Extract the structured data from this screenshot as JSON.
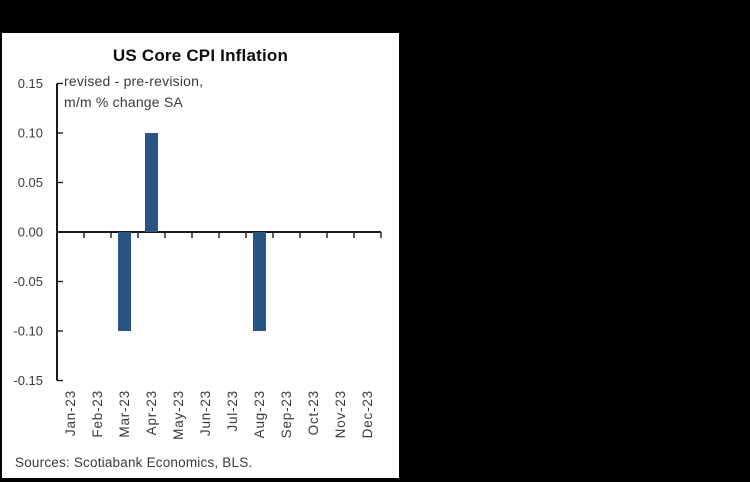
{
  "page": {
    "background_color": "#000000",
    "panel_background": "#ffffff"
  },
  "chart_data": {
    "type": "bar",
    "title": "US Core CPI Inflation",
    "annotation": [
      "revised - pre-revision,",
      "m/m % change SA"
    ],
    "categories": [
      "Jan-23",
      "Feb-23",
      "Mar-23",
      "Apr-23",
      "May-23",
      "Jun-23",
      "Jul-23",
      "Aug-23",
      "Sep-23",
      "Oct-23",
      "Nov-23",
      "Dec-23"
    ],
    "values": [
      0,
      0,
      -0.1,
      0.1,
      0,
      0,
      0,
      -0.1,
      0,
      0,
      0,
      0
    ],
    "y_ticks": [
      0.15,
      0.1,
      0.05,
      0.0,
      -0.05,
      -0.1,
      -0.15
    ],
    "y_tick_labels": [
      "0.15",
      "0.10",
      "0.05",
      "0.00",
      "-0.05",
      "-0.10",
      "-0.15"
    ],
    "ylim": [
      -0.15,
      0.15
    ],
    "xlabel": "",
    "ylabel": "",
    "grid": false,
    "legend": "none",
    "bar_color": "#2b5486",
    "axis_color": "#1a1a1a",
    "source": "Sources: Scotiabank Economics, BLS."
  }
}
